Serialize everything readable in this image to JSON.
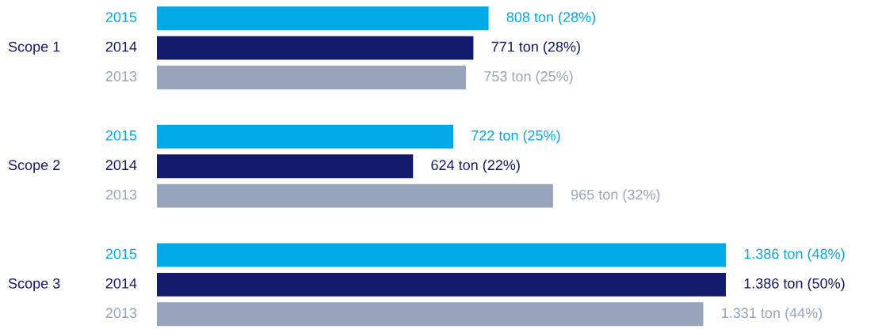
{
  "chart_data": {
    "type": "bar",
    "orientation": "horizontal",
    "categories": [
      "Scope 1",
      "Scope 2",
      "Scope 3"
    ],
    "xlim": [
      0,
      1386
    ],
    "tick_labels": false,
    "legend": false,
    "series": [
      {
        "name": "2015",
        "color": "#00aae7",
        "values": [
          808,
          722,
          1386
        ],
        "value_labels": [
          "808 ton (28%)",
          "722 ton (25%)",
          "1.386 ton (48%)"
        ]
      },
      {
        "name": "2014",
        "color": "#141a6b",
        "values": [
          771,
          624,
          1386
        ],
        "value_labels": [
          "771 ton (28%)",
          "624 ton (22%)",
          "1.386 ton (50%)"
        ]
      },
      {
        "name": "2013",
        "color": "#98a4bb",
        "values": [
          753,
          965,
          1331
        ],
        "value_labels": [
          "753 ton (25%)",
          "965 ton (32%)",
          "1.331 ton (44%)"
        ]
      }
    ]
  }
}
